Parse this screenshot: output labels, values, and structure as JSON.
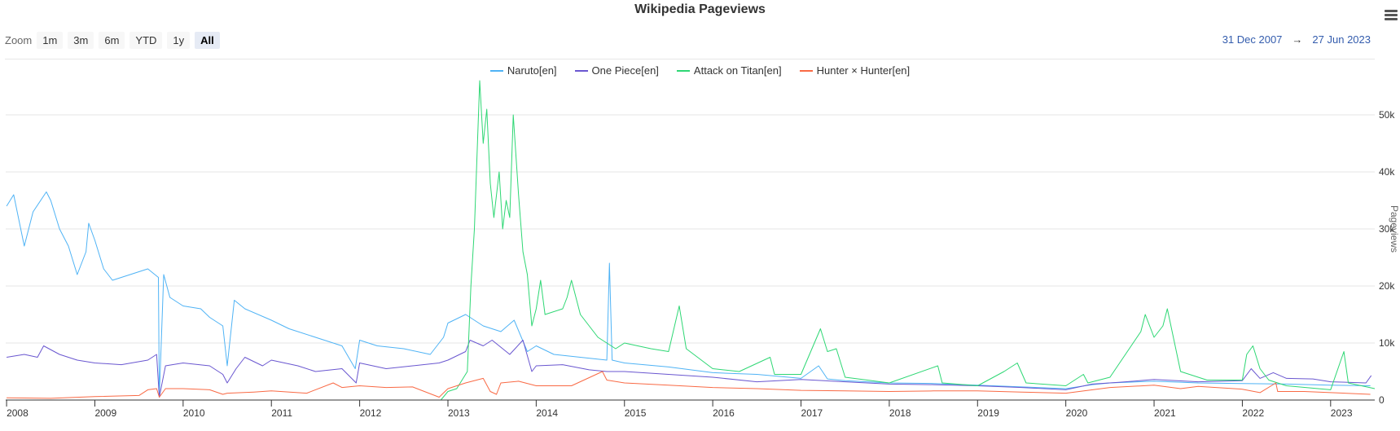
{
  "title": "Wikipedia Pageviews",
  "zoom": {
    "label": "Zoom",
    "buttons": [
      "1m",
      "3m",
      "6m",
      "YTD",
      "1y",
      "All"
    ],
    "active": "All"
  },
  "range": {
    "from": "31 Dec 2007",
    "arrow": "→",
    "to": "27 Jun 2023"
  },
  "colors": {
    "link": "#335cad",
    "grid": "#e6e6e6"
  },
  "chart_data": {
    "type": "line",
    "title": "Wikipedia Pageviews",
    "xlabel": "",
    "ylabel": "Pageviews",
    "xlim": [
      2007.99,
      2023.5
    ],
    "ylim": [
      0,
      57000
    ],
    "y_ticks": [
      0,
      10000,
      20000,
      30000,
      40000,
      50000
    ],
    "y_tick_labels": [
      "0",
      "10k",
      "20k",
      "30k",
      "40k",
      "50k"
    ],
    "x_ticks": [
      2008,
      2009,
      2010,
      2011,
      2012,
      2013,
      2014,
      2015,
      2016,
      2017,
      2018,
      2019,
      2020,
      2021,
      2022,
      2023
    ],
    "x_tick_labels": [
      "2008",
      "2009",
      "2010",
      "2011",
      "2012",
      "2013",
      "2014",
      "2015",
      "2016",
      "2017",
      "2018",
      "2019",
      "2020",
      "2021",
      "2022",
      "2023"
    ],
    "grid": true,
    "legend_position": "top-center",
    "series": [
      {
        "name": "Naruto[en]",
        "color": "#4fb3f5",
        "points": [
          [
            2008.0,
            34000
          ],
          [
            2008.08,
            36000
          ],
          [
            2008.2,
            27000
          ],
          [
            2008.3,
            33000
          ],
          [
            2008.45,
            36500
          ],
          [
            2008.5,
            35000
          ],
          [
            2008.6,
            30000
          ],
          [
            2008.7,
            27000
          ],
          [
            2008.8,
            22000
          ],
          [
            2008.9,
            26000
          ],
          [
            2008.93,
            31000
          ],
          [
            2009.0,
            28000
          ],
          [
            2009.1,
            23000
          ],
          [
            2009.2,
            21000
          ],
          [
            2009.4,
            22000
          ],
          [
            2009.6,
            23000
          ],
          [
            2009.72,
            21500
          ],
          [
            2009.73,
            500
          ],
          [
            2009.78,
            22000
          ],
          [
            2009.85,
            18000
          ],
          [
            2010.0,
            16500
          ],
          [
            2010.2,
            16000
          ],
          [
            2010.3,
            14500
          ],
          [
            2010.45,
            13000
          ],
          [
            2010.5,
            6000
          ],
          [
            2010.58,
            17500
          ],
          [
            2010.7,
            16000
          ],
          [
            2011.0,
            14000
          ],
          [
            2011.2,
            12500
          ],
          [
            2011.5,
            11000
          ],
          [
            2011.8,
            9500
          ],
          [
            2011.95,
            5500
          ],
          [
            2012.0,
            10500
          ],
          [
            2012.2,
            9500
          ],
          [
            2012.5,
            9000
          ],
          [
            2012.8,
            8000
          ],
          [
            2012.95,
            11000
          ],
          [
            2013.0,
            13500
          ],
          [
            2013.2,
            15000
          ],
          [
            2013.4,
            13000
          ],
          [
            2013.6,
            12000
          ],
          [
            2013.75,
            14000
          ],
          [
            2013.9,
            8500
          ],
          [
            2014.0,
            9500
          ],
          [
            2014.2,
            8000
          ],
          [
            2014.5,
            7500
          ],
          [
            2014.8,
            7000
          ],
          [
            2014.83,
            24000
          ],
          [
            2014.86,
            7000
          ],
          [
            2015.0,
            6500
          ],
          [
            2015.5,
            5800
          ],
          [
            2016.0,
            4800
          ],
          [
            2016.5,
            4500
          ],
          [
            2017.0,
            3800
          ],
          [
            2017.2,
            6000
          ],
          [
            2017.3,
            3700
          ],
          [
            2017.5,
            3400
          ],
          [
            2018.0,
            3000
          ],
          [
            2018.5,
            2900
          ],
          [
            2019.0,
            2600
          ],
          [
            2019.5,
            2300
          ],
          [
            2020.0,
            2000
          ],
          [
            2020.3,
            2700
          ],
          [
            2020.5,
            3000
          ],
          [
            2021.0,
            3300
          ],
          [
            2021.5,
            3000
          ],
          [
            2022.0,
            2900
          ],
          [
            2022.5,
            2800
          ],
          [
            2023.0,
            2600
          ],
          [
            2023.45,
            2500
          ]
        ]
      },
      {
        "name": "One Piece[en]",
        "color": "#6a57d0",
        "points": [
          [
            2008.0,
            7500
          ],
          [
            2008.2,
            8000
          ],
          [
            2008.35,
            7500
          ],
          [
            2008.42,
            9500
          ],
          [
            2008.6,
            8000
          ],
          [
            2008.8,
            7000
          ],
          [
            2009.0,
            6500
          ],
          [
            2009.3,
            6200
          ],
          [
            2009.6,
            7000
          ],
          [
            2009.7,
            8000
          ],
          [
            2009.73,
            500
          ],
          [
            2009.8,
            6000
          ],
          [
            2010.0,
            6500
          ],
          [
            2010.3,
            6000
          ],
          [
            2010.45,
            4500
          ],
          [
            2010.5,
            3000
          ],
          [
            2010.6,
            5500
          ],
          [
            2010.7,
            7500
          ],
          [
            2010.9,
            6000
          ],
          [
            2011.0,
            7000
          ],
          [
            2011.3,
            6000
          ],
          [
            2011.5,
            5000
          ],
          [
            2011.8,
            5500
          ],
          [
            2011.96,
            3000
          ],
          [
            2012.0,
            6500
          ],
          [
            2012.3,
            5500
          ],
          [
            2012.6,
            6000
          ],
          [
            2012.9,
            6500
          ],
          [
            2013.0,
            7000
          ],
          [
            2013.2,
            8500
          ],
          [
            2013.25,
            10500
          ],
          [
            2013.4,
            9500
          ],
          [
            2013.5,
            10500
          ],
          [
            2013.7,
            8000
          ],
          [
            2013.85,
            10500
          ],
          [
            2013.95,
            5000
          ],
          [
            2014.0,
            6000
          ],
          [
            2014.3,
            6200
          ],
          [
            2014.6,
            5300
          ],
          [
            2014.8,
            5000
          ],
          [
            2015.0,
            5000
          ],
          [
            2015.5,
            4500
          ],
          [
            2016.0,
            4000
          ],
          [
            2016.5,
            3200
          ],
          [
            2017.0,
            3600
          ],
          [
            2017.5,
            3200
          ],
          [
            2018.0,
            2800
          ],
          [
            2018.5,
            2700
          ],
          [
            2019.0,
            2500
          ],
          [
            2019.5,
            2200
          ],
          [
            2020.0,
            1800
          ],
          [
            2020.3,
            2800
          ],
          [
            2020.6,
            3100
          ],
          [
            2021.0,
            3600
          ],
          [
            2021.5,
            3200
          ],
          [
            2022.0,
            3400
          ],
          [
            2022.1,
            5500
          ],
          [
            2022.2,
            3800
          ],
          [
            2022.35,
            4800
          ],
          [
            2022.5,
            3800
          ],
          [
            2022.8,
            3700
          ],
          [
            2023.0,
            3200
          ],
          [
            2023.4,
            3000
          ],
          [
            2023.46,
            4300
          ]
        ]
      },
      {
        "name": "Attack on Titan[en]",
        "color": "#2ed774",
        "points": [
          [
            2012.92,
            0
          ],
          [
            2013.0,
            1500
          ],
          [
            2013.1,
            2000
          ],
          [
            2013.22,
            5000
          ],
          [
            2013.26,
            20000
          ],
          [
            2013.3,
            30000
          ],
          [
            2013.36,
            56000
          ],
          [
            2013.4,
            45000
          ],
          [
            2013.44,
            51000
          ],
          [
            2013.48,
            38000
          ],
          [
            2013.52,
            32000
          ],
          [
            2013.58,
            40000
          ],
          [
            2013.62,
            30000
          ],
          [
            2013.66,
            35000
          ],
          [
            2013.7,
            32000
          ],
          [
            2013.74,
            50000
          ],
          [
            2013.8,
            36000
          ],
          [
            2013.85,
            26000
          ],
          [
            2013.9,
            22000
          ],
          [
            2013.95,
            13000
          ],
          [
            2014.0,
            16000
          ],
          [
            2014.05,
            21000
          ],
          [
            2014.1,
            15000
          ],
          [
            2014.3,
            16000
          ],
          [
            2014.35,
            18000
          ],
          [
            2014.4,
            21000
          ],
          [
            2014.5,
            15000
          ],
          [
            2014.7,
            11000
          ],
          [
            2014.9,
            9000
          ],
          [
            2015.0,
            10000
          ],
          [
            2015.3,
            9000
          ],
          [
            2015.5,
            8500
          ],
          [
            2015.62,
            16500
          ],
          [
            2015.7,
            9000
          ],
          [
            2016.0,
            5500
          ],
          [
            2016.3,
            5000
          ],
          [
            2016.65,
            7500
          ],
          [
            2016.7,
            4500
          ],
          [
            2017.0,
            4500
          ],
          [
            2017.22,
            12500
          ],
          [
            2017.3,
            8500
          ],
          [
            2017.4,
            9000
          ],
          [
            2017.5,
            4000
          ],
          [
            2018.0,
            3000
          ],
          [
            2018.55,
            6000
          ],
          [
            2018.6,
            3000
          ],
          [
            2019.0,
            2500
          ],
          [
            2019.3,
            5000
          ],
          [
            2019.45,
            6500
          ],
          [
            2019.55,
            3000
          ],
          [
            2020.0,
            2500
          ],
          [
            2020.2,
            4500
          ],
          [
            2020.25,
            3000
          ],
          [
            2020.5,
            4000
          ],
          [
            2020.85,
            12000
          ],
          [
            2020.9,
            15000
          ],
          [
            2021.0,
            11000
          ],
          [
            2021.1,
            13000
          ],
          [
            2021.15,
            16000
          ],
          [
            2021.3,
            5000
          ],
          [
            2021.6,
            3500
          ],
          [
            2022.0,
            3500
          ],
          [
            2022.05,
            8000
          ],
          [
            2022.12,
            9500
          ],
          [
            2022.2,
            5500
          ],
          [
            2022.3,
            3500
          ],
          [
            2022.5,
            2500
          ],
          [
            2023.0,
            1800
          ],
          [
            2023.15,
            8500
          ],
          [
            2023.2,
            3000
          ],
          [
            2023.5,
            2000
          ]
        ]
      },
      {
        "name": "Hunter × Hunter[en]",
        "color": "#f96a45",
        "points": [
          [
            2008.0,
            400
          ],
          [
            2008.5,
            300
          ],
          [
            2009.0,
            600
          ],
          [
            2009.5,
            800
          ],
          [
            2009.6,
            1800
          ],
          [
            2009.7,
            2000
          ],
          [
            2009.73,
            500
          ],
          [
            2009.8,
            2000
          ],
          [
            2010.0,
            2000
          ],
          [
            2010.3,
            1800
          ],
          [
            2010.45,
            1000
          ],
          [
            2010.5,
            1200
          ],
          [
            2010.8,
            1400
          ],
          [
            2011.0,
            1600
          ],
          [
            2011.4,
            1200
          ],
          [
            2011.7,
            3000
          ],
          [
            2011.8,
            2200
          ],
          [
            2012.0,
            2500
          ],
          [
            2012.3,
            2200
          ],
          [
            2012.6,
            2300
          ],
          [
            2012.9,
            500
          ],
          [
            2013.0,
            2000
          ],
          [
            2013.2,
            3000
          ],
          [
            2013.4,
            3800
          ],
          [
            2013.48,
            1500
          ],
          [
            2013.55,
            1000
          ],
          [
            2013.6,
            3000
          ],
          [
            2013.8,
            3300
          ],
          [
            2014.0,
            2500
          ],
          [
            2014.4,
            2500
          ],
          [
            2014.75,
            5000
          ],
          [
            2014.8,
            3500
          ],
          [
            2015.0,
            3000
          ],
          [
            2015.5,
            2600
          ],
          [
            2016.0,
            2200
          ],
          [
            2016.5,
            2000
          ],
          [
            2017.0,
            1700
          ],
          [
            2017.5,
            1600
          ],
          [
            2018.0,
            1500
          ],
          [
            2018.5,
            1600
          ],
          [
            2019.0,
            1600
          ],
          [
            2019.5,
            1400
          ],
          [
            2020.0,
            1200
          ],
          [
            2020.5,
            2200
          ],
          [
            2021.0,
            2600
          ],
          [
            2021.3,
            2000
          ],
          [
            2021.5,
            2400
          ],
          [
            2022.0,
            1900
          ],
          [
            2022.2,
            1300
          ],
          [
            2022.38,
            3000
          ],
          [
            2022.4,
            1500
          ],
          [
            2022.7,
            1500
          ],
          [
            2023.0,
            1300
          ],
          [
            2023.45,
            1000
          ]
        ]
      }
    ]
  }
}
